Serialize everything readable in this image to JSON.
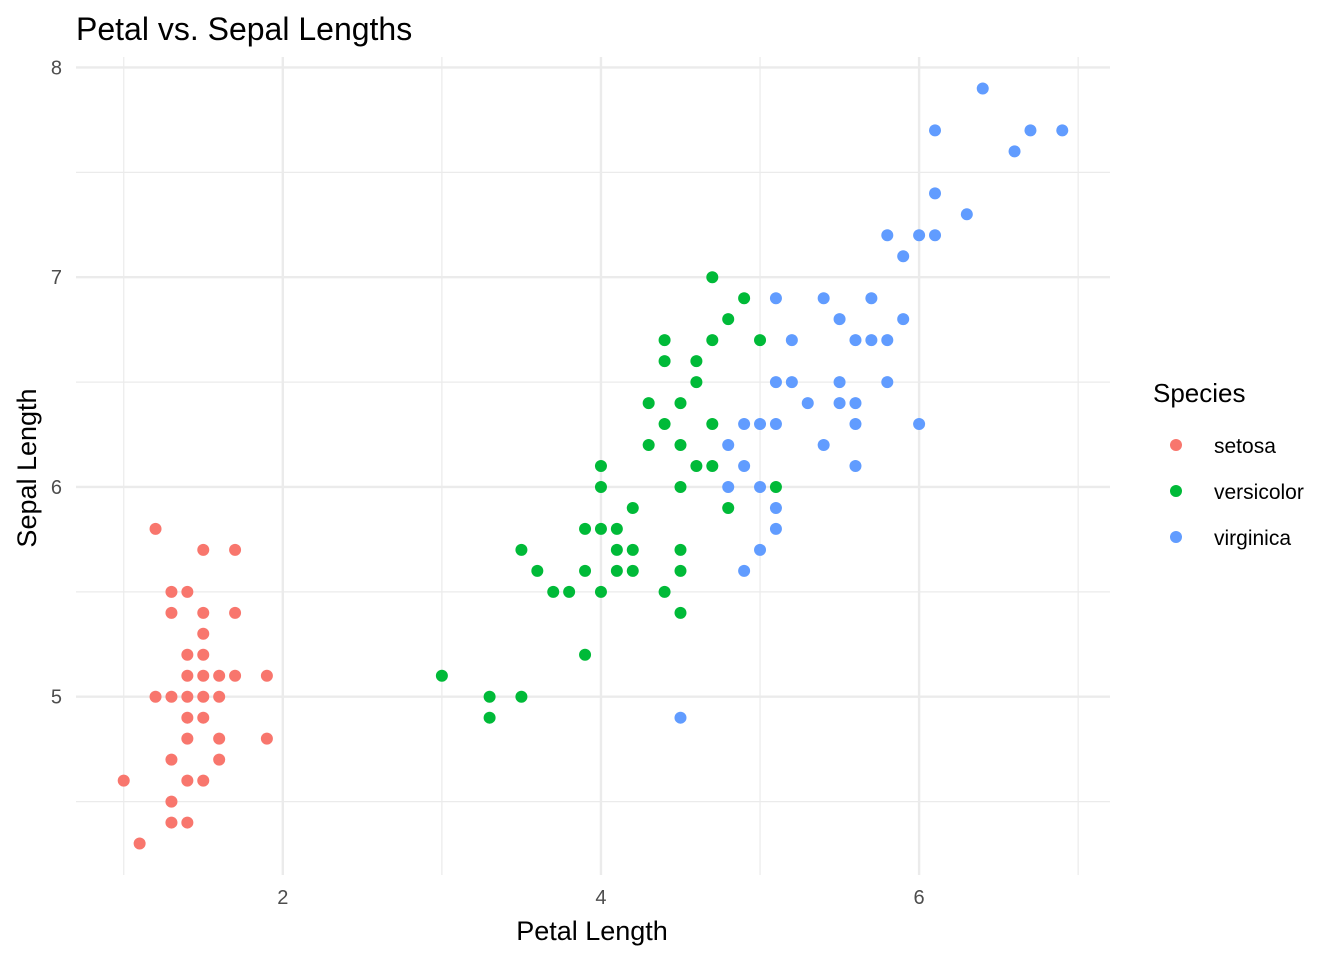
{
  "chart_data": {
    "type": "scatter",
    "title": "Petal vs. Sepal Lengths",
    "xlabel": "Petal Length",
    "ylabel": "Sepal Length",
    "xlim": [
      0.7,
      7.2
    ],
    "ylim": [
      4.15,
      8.05
    ],
    "x_ticks": [
      {
        "value": 2,
        "label": "2"
      },
      {
        "value": 4,
        "label": "4"
      },
      {
        "value": 6,
        "label": "6"
      }
    ],
    "y_ticks": [
      {
        "value": 5,
        "label": "5"
      },
      {
        "value": 6,
        "label": "6"
      },
      {
        "value": 7,
        "label": "7"
      },
      {
        "value": 8,
        "label": "8"
      }
    ],
    "x_minor": [
      1,
      3,
      5,
      7
    ],
    "y_minor": [
      4.5,
      5.5,
      6.5,
      7.5
    ],
    "grid": true,
    "legend": {
      "title": "Species",
      "position": "right"
    },
    "series": [
      {
        "name": "setosa",
        "color": "#F8766D",
        "points": [
          [
            1.2,
            5.8
          ],
          [
            1.5,
            5.7
          ],
          [
            1.7,
            5.7
          ],
          [
            1.3,
            5.5
          ],
          [
            1.4,
            5.5
          ],
          [
            1.3,
            5.4
          ],
          [
            1.5,
            5.4
          ],
          [
            1.7,
            5.4
          ],
          [
            1.5,
            5.3
          ],
          [
            1.4,
            5.2
          ],
          [
            1.5,
            5.2
          ],
          [
            1.4,
            5.1
          ],
          [
            1.5,
            5.1
          ],
          [
            1.6,
            5.1
          ],
          [
            1.7,
            5.1
          ],
          [
            1.9,
            5.1
          ],
          [
            1.2,
            5.0
          ],
          [
            1.3,
            5.0
          ],
          [
            1.4,
            5.0
          ],
          [
            1.5,
            5.0
          ],
          [
            1.6,
            5.0
          ],
          [
            1.4,
            4.9
          ],
          [
            1.5,
            4.9
          ],
          [
            1.4,
            4.8
          ],
          [
            1.6,
            4.8
          ],
          [
            1.9,
            4.8
          ],
          [
            1.3,
            4.7
          ],
          [
            1.6,
            4.7
          ],
          [
            1.0,
            4.6
          ],
          [
            1.4,
            4.6
          ],
          [
            1.5,
            4.6
          ],
          [
            1.3,
            4.5
          ],
          [
            1.3,
            4.4
          ],
          [
            1.4,
            4.4
          ],
          [
            1.1,
            4.3
          ]
        ]
      },
      {
        "name": "versicolor",
        "color": "#00BA38",
        "points": [
          [
            4.7,
            7.0
          ],
          [
            4.9,
            6.9
          ],
          [
            4.8,
            6.8
          ],
          [
            4.4,
            6.7
          ],
          [
            4.7,
            6.7
          ],
          [
            5.0,
            6.7
          ],
          [
            4.4,
            6.6
          ],
          [
            4.6,
            6.6
          ],
          [
            4.6,
            6.5
          ],
          [
            4.3,
            6.4
          ],
          [
            4.5,
            6.4
          ],
          [
            4.4,
            6.3
          ],
          [
            4.7,
            6.3
          ],
          [
            4.3,
            6.2
          ],
          [
            4.5,
            6.2
          ],
          [
            4.0,
            6.1
          ],
          [
            4.6,
            6.1
          ],
          [
            4.7,
            6.1
          ],
          [
            4.0,
            6.0
          ],
          [
            4.5,
            6.0
          ],
          [
            5.1,
            6.0
          ],
          [
            4.2,
            5.9
          ],
          [
            4.8,
            5.9
          ],
          [
            3.9,
            5.8
          ],
          [
            4.0,
            5.8
          ],
          [
            4.1,
            5.8
          ],
          [
            3.5,
            5.7
          ],
          [
            4.1,
            5.7
          ],
          [
            4.2,
            5.7
          ],
          [
            4.5,
            5.7
          ],
          [
            3.6,
            5.6
          ],
          [
            3.9,
            5.6
          ],
          [
            4.1,
            5.6
          ],
          [
            4.2,
            5.6
          ],
          [
            4.5,
            5.6
          ],
          [
            3.7,
            5.5
          ],
          [
            3.8,
            5.5
          ],
          [
            4.0,
            5.5
          ],
          [
            4.4,
            5.5
          ],
          [
            4.5,
            5.4
          ],
          [
            3.9,
            5.2
          ],
          [
            3.0,
            5.1
          ],
          [
            3.3,
            5.0
          ],
          [
            3.5,
            5.0
          ],
          [
            3.3,
            4.9
          ]
        ]
      },
      {
        "name": "virginica",
        "color": "#619CFF",
        "points": [
          [
            6.4,
            7.9
          ],
          [
            6.1,
            7.7
          ],
          [
            6.7,
            7.7
          ],
          [
            6.9,
            7.7
          ],
          [
            6.6,
            7.6
          ],
          [
            6.1,
            7.4
          ],
          [
            6.3,
            7.3
          ],
          [
            5.8,
            7.2
          ],
          [
            6.0,
            7.2
          ],
          [
            6.1,
            7.2
          ],
          [
            5.9,
            7.1
          ],
          [
            5.1,
            6.9
          ],
          [
            5.4,
            6.9
          ],
          [
            5.7,
            6.9
          ],
          [
            5.5,
            6.8
          ],
          [
            5.9,
            6.8
          ],
          [
            5.2,
            6.7
          ],
          [
            5.6,
            6.7
          ],
          [
            5.7,
            6.7
          ],
          [
            5.8,
            6.7
          ],
          [
            5.1,
            6.5
          ],
          [
            5.2,
            6.5
          ],
          [
            5.5,
            6.5
          ],
          [
            5.8,
            6.5
          ],
          [
            5.3,
            6.4
          ],
          [
            5.5,
            6.4
          ],
          [
            5.6,
            6.4
          ],
          [
            4.9,
            6.3
          ],
          [
            5.0,
            6.3
          ],
          [
            5.1,
            6.3
          ],
          [
            5.6,
            6.3
          ],
          [
            6.0,
            6.3
          ],
          [
            4.8,
            6.2
          ],
          [
            5.4,
            6.2
          ],
          [
            4.9,
            6.1
          ],
          [
            5.6,
            6.1
          ],
          [
            4.8,
            6.0
          ],
          [
            5.0,
            6.0
          ],
          [
            5.1,
            5.9
          ],
          [
            5.1,
            5.8
          ],
          [
            5.0,
            5.7
          ],
          [
            4.9,
            5.6
          ],
          [
            4.5,
            4.9
          ]
        ]
      }
    ]
  }
}
